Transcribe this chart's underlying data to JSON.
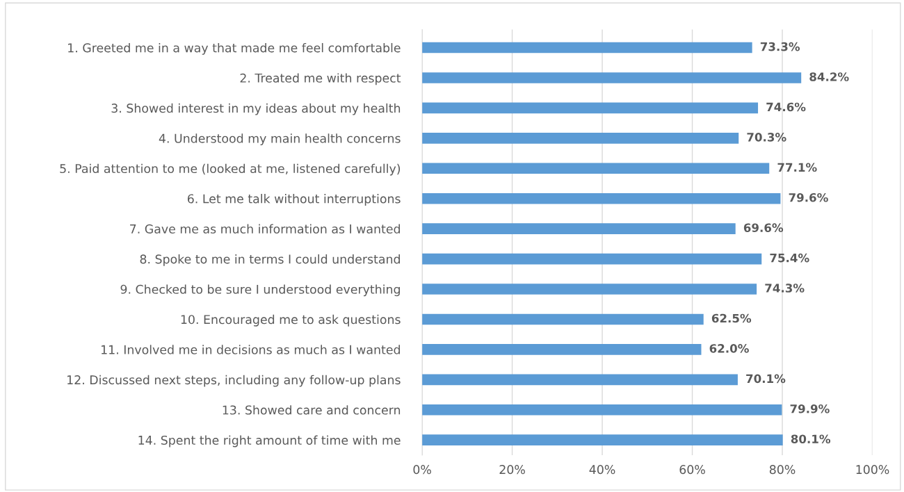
{
  "chart_data": {
    "type": "bar",
    "orientation": "horizontal",
    "categories": [
      "1. Greeted me in a way that made me feel comfortable",
      "2. Treated me with respect",
      "3. Showed interest in my ideas about my health",
      "4. Understood my main health concerns",
      "5. Paid attention to me (looked at me, listened carefully)",
      "6. Let me talk without interruptions",
      "7. Gave me as much information as I wanted",
      "8. Spoke to me in terms I could understand",
      "9. Checked to be sure I understood everything",
      "10. Encouraged me to ask questions",
      "11. Involved me in decisions as much as I wanted",
      "12. Discussed next steps, including any follow-up plans",
      "13. Showed care and concern",
      "14. Spent the right amount of time with me"
    ],
    "values": [
      73.3,
      84.2,
      74.6,
      70.3,
      77.1,
      79.6,
      69.6,
      75.4,
      74.3,
      62.5,
      62.0,
      70.1,
      79.9,
      80.1
    ],
    "value_labels": [
      "73.3%",
      "84.2%",
      "74.6%",
      "70.3%",
      "77.1%",
      "79.6%",
      "69.6%",
      "75.4%",
      "74.3%",
      "62.5%",
      "62.0%",
      "70.1%",
      "79.9%",
      "80.1%"
    ],
    "color": "#5b9bd5",
    "xlim": [
      0,
      100
    ],
    "xticks": [
      {
        "value": 0,
        "label": "0%"
      },
      {
        "value": 20,
        "label": "20%"
      },
      {
        "value": 40,
        "label": "40%"
      },
      {
        "value": 60,
        "label": "60%"
      },
      {
        "value": 80,
        "label": "80%"
      },
      {
        "value": 100,
        "label": "100%"
      }
    ],
    "grid": "x"
  }
}
